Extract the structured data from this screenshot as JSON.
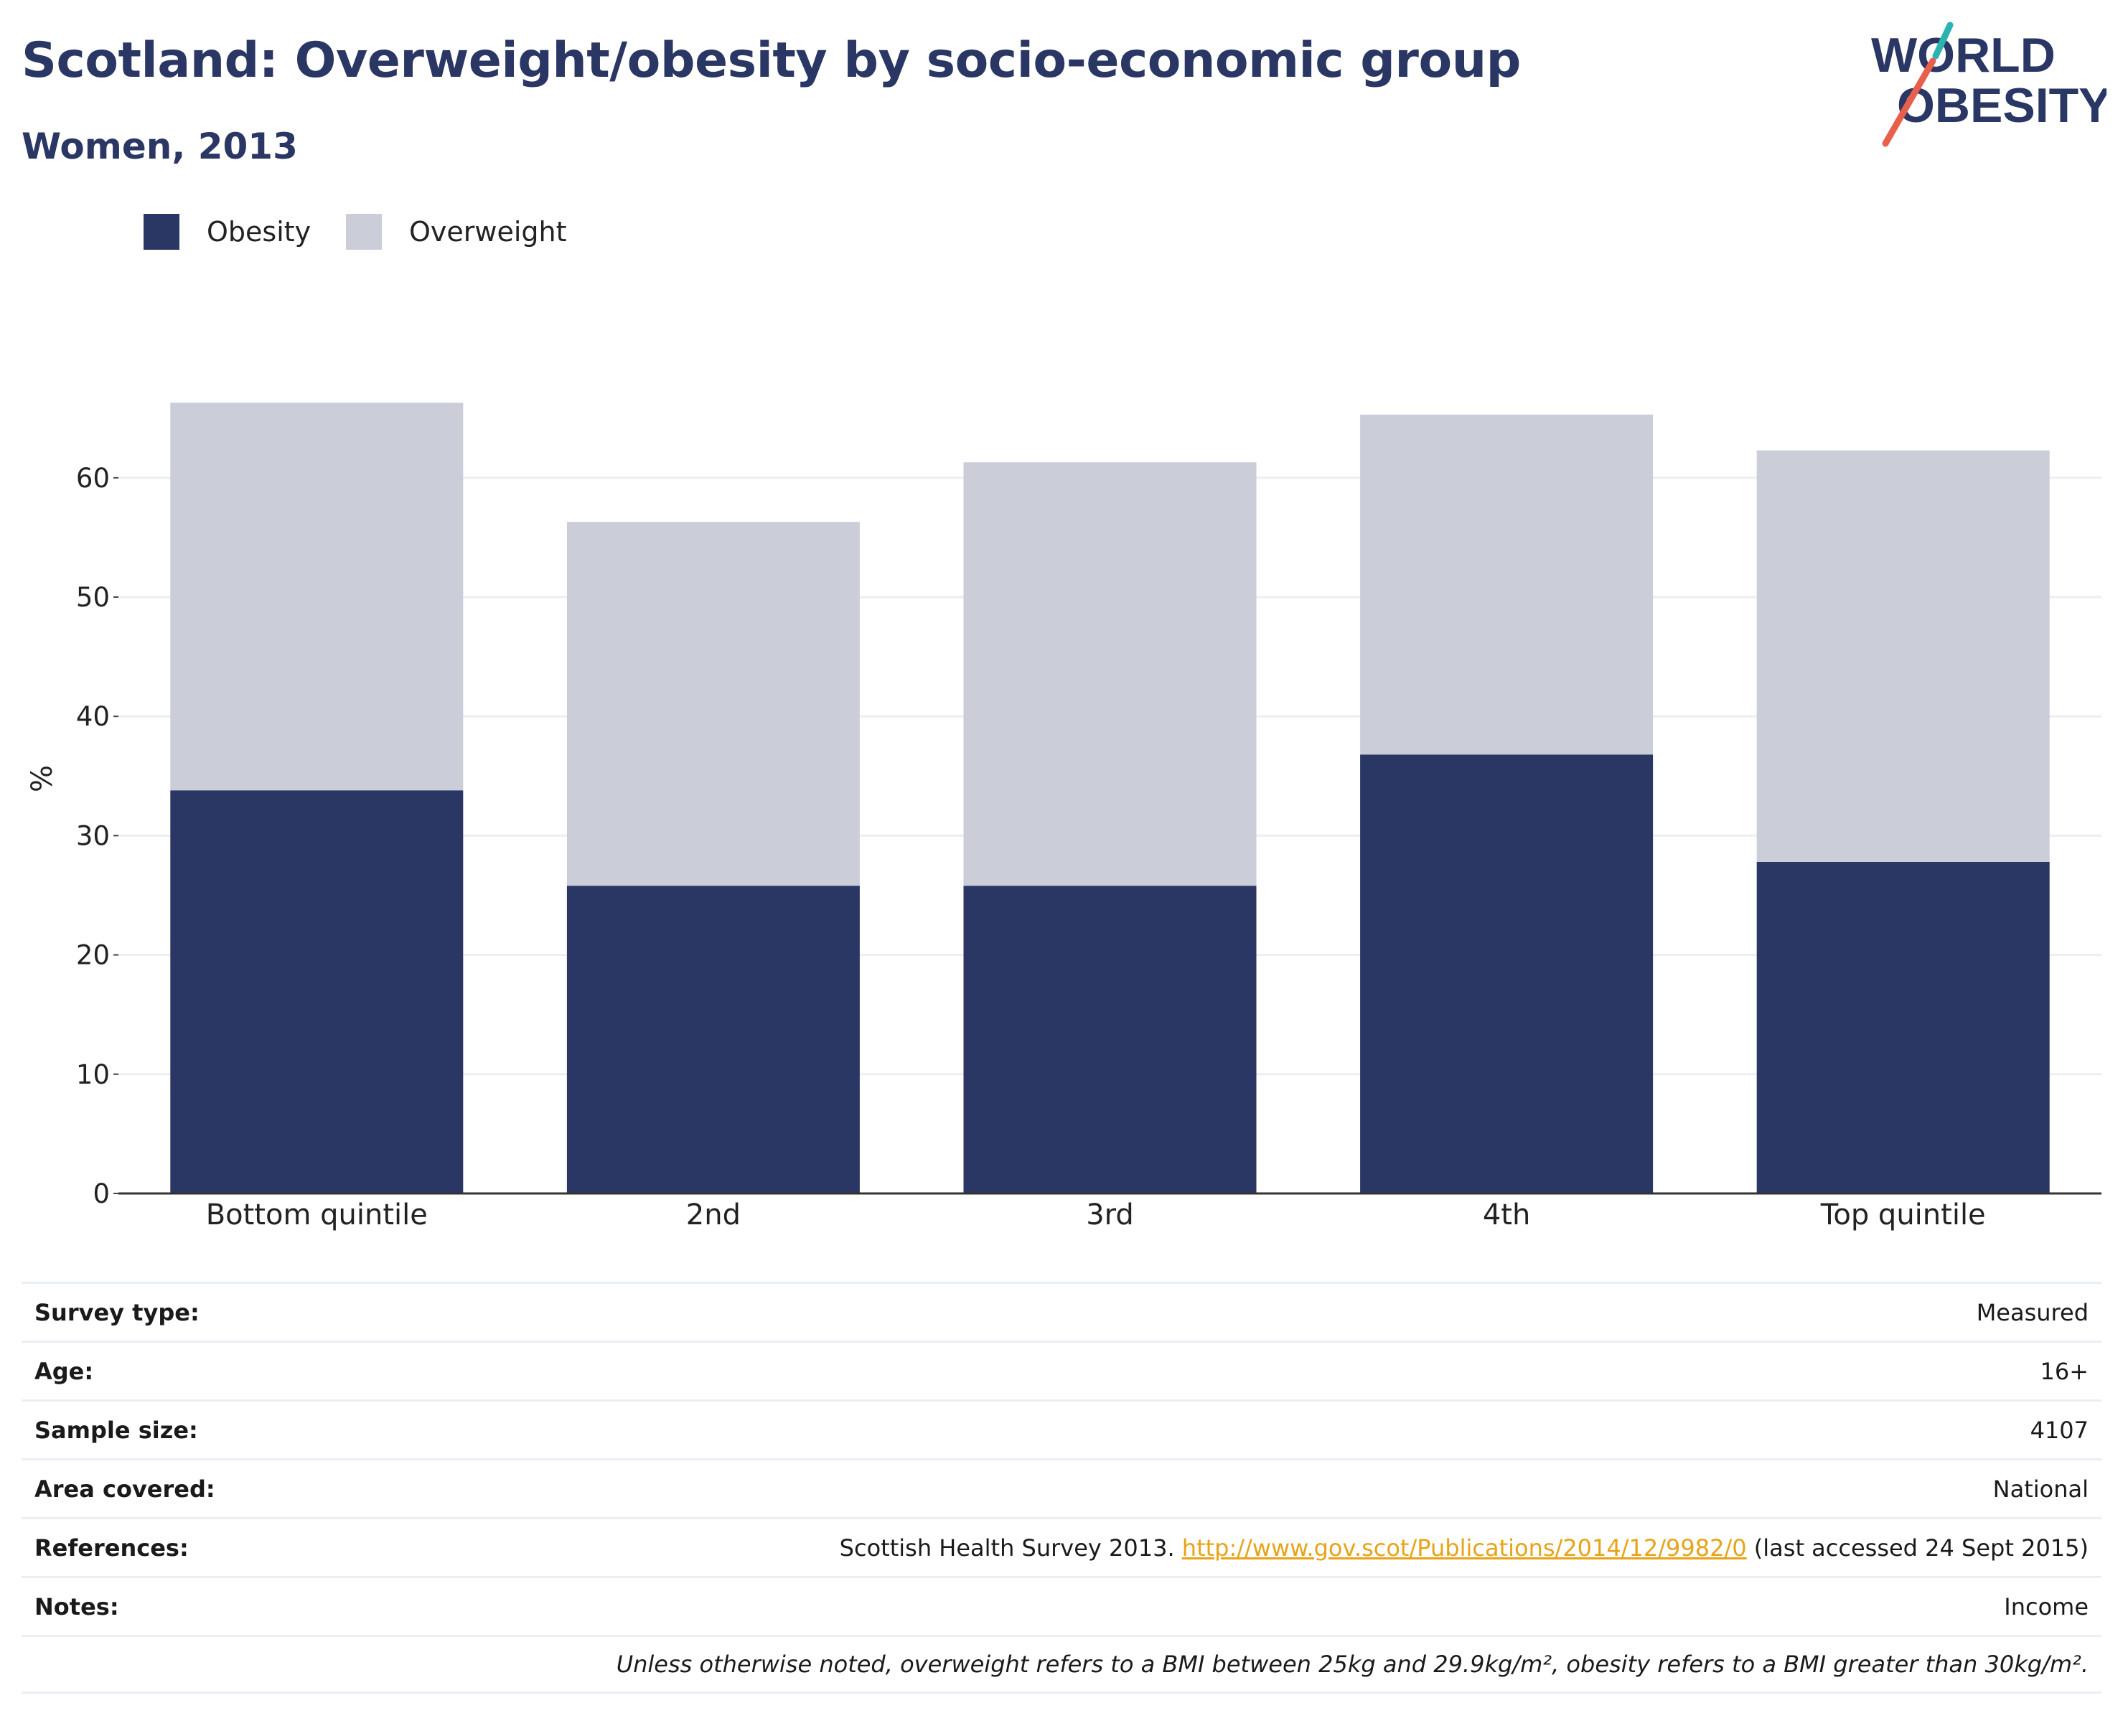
{
  "header": {
    "title": "Scotland: Overweight/obesity by socio-economic group",
    "subtitle": "Women, 2013"
  },
  "logo": {
    "line1": "WORLD",
    "line2": "OBESITY"
  },
  "colors": {
    "obesity": "#2a3663",
    "overweight": "#cbcdd8",
    "title": "#2a3663",
    "link": "#e8a317",
    "logo_teal": "#2ab3b1",
    "logo_red": "#e8604c"
  },
  "chart_data": {
    "type": "bar",
    "stacked": true,
    "categories": [
      "Bottom quintile",
      "2nd",
      "3rd",
      "4th",
      "Top quintile"
    ],
    "series": [
      {
        "name": "Obesity",
        "values": [
          33.8,
          25.8,
          25.8,
          36.8,
          27.8
        ]
      },
      {
        "name": "Overweight",
        "values": [
          32.5,
          30.5,
          35.5,
          28.5,
          34.5
        ]
      }
    ],
    "ylabel": "%",
    "xlabel": "",
    "ylim": [
      0,
      70
    ],
    "yticks": [
      0,
      10,
      20,
      30,
      40,
      50,
      60
    ],
    "grid": true,
    "legend": "top-left"
  },
  "info": {
    "survey_type_label": "Survey type:",
    "survey_type": "Measured",
    "age_label": "Age:",
    "age": "16+",
    "sample_size_label": "Sample size:",
    "sample_size": "4107",
    "area_label": "Area covered:",
    "area": "National",
    "references_label": "References:",
    "references_pre": "Scottish Health Survey 2013. ",
    "references_link": "http://www.gov.scot/Publications/2014/12/9982/0",
    "references_post": " (last accessed 24 Sept 2015)",
    "notes_label": "Notes:",
    "notes": "Income",
    "footnote": "Unless otherwise noted, overweight refers to a BMI between 25kg and 29.9kg/m², obesity refers to a BMI greater than 30kg/m²."
  }
}
